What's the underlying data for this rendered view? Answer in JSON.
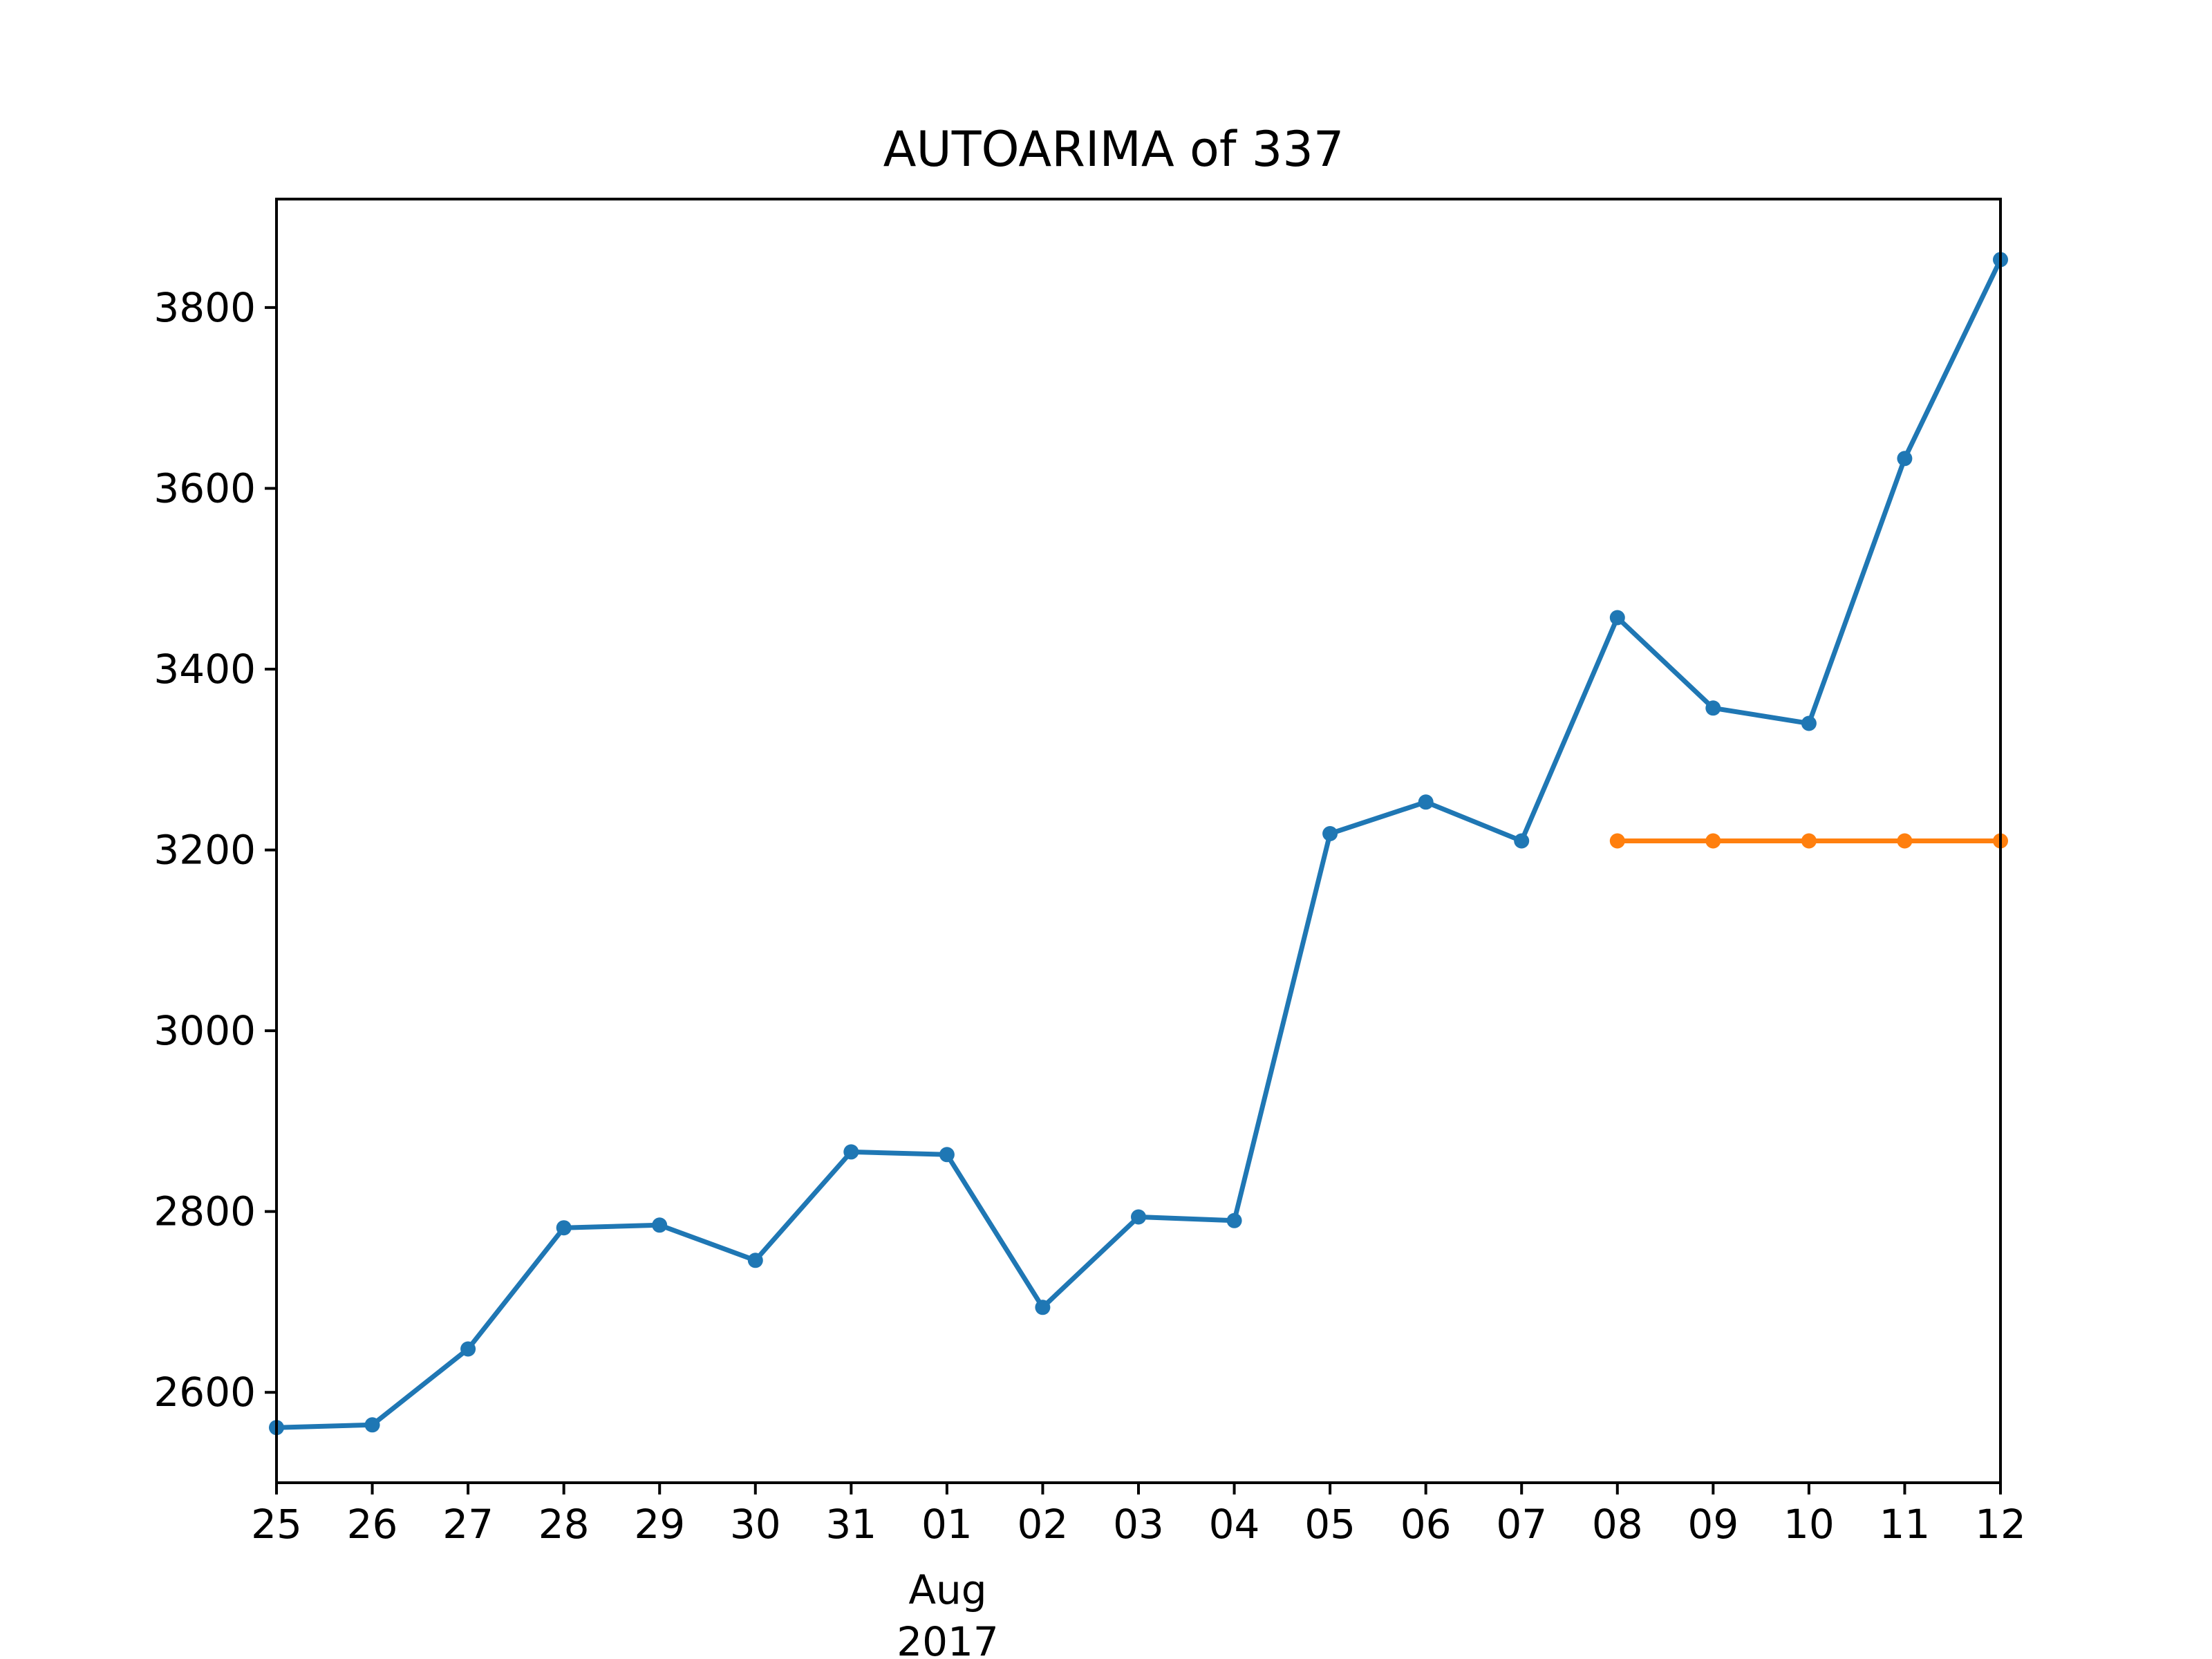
{
  "chart_data": {
    "type": "line",
    "title": "AUTOARIMA of 337",
    "xlabel": "",
    "ylabel": "",
    "x_tick_labels": [
      "25",
      "26",
      "27",
      "28",
      "29",
      "30",
      "31",
      "01",
      "02",
      "03",
      "04",
      "05",
      "06",
      "07",
      "08",
      "09",
      "10",
      "11",
      "12"
    ],
    "x_month_label": "Aug",
    "x_year_label": "2017",
    "ylim": [
      2500,
      3920
    ],
    "y_ticks": [
      2600,
      2800,
      3000,
      3200,
      3400,
      3600,
      3800
    ],
    "grid": false,
    "x": [
      "2017-07-25",
      "2017-07-26",
      "2017-07-27",
      "2017-07-28",
      "2017-07-29",
      "2017-07-30",
      "2017-07-31",
      "2017-08-01",
      "2017-08-02",
      "2017-08-03",
      "2017-08-04",
      "2017-08-05",
      "2017-08-06",
      "2017-08-07",
      "2017-08-08",
      "2017-08-09",
      "2017-08-10",
      "2017-08-11",
      "2017-08-12"
    ],
    "series": [
      {
        "color": "#1f77b4",
        "x": [
          "2017-07-25",
          "2017-07-26",
          "2017-07-27",
          "2017-07-28",
          "2017-07-29",
          "2017-07-30",
          "2017-07-31",
          "2017-08-01",
          "2017-08-02",
          "2017-08-03",
          "2017-08-04",
          "2017-08-05",
          "2017-08-06",
          "2017-08-07",
          "2017-08-08",
          "2017-08-09",
          "2017-08-10",
          "2017-08-11",
          "2017-08-12"
        ],
        "values": [
          2561,
          2564,
          2648,
          2782,
          2785,
          2746,
          2866,
          2863,
          2694,
          2794,
          2790,
          3218,
          3253,
          3210,
          3457,
          3357,
          3340,
          3633,
          3853
        ]
      },
      {
        "color": "#ff7f0e",
        "x": [
          "2017-08-08",
          "2017-08-09",
          "2017-08-10",
          "2017-08-11",
          "2017-08-12"
        ],
        "values": [
          3210,
          3210,
          3210,
          3210,
          3210
        ]
      }
    ]
  }
}
